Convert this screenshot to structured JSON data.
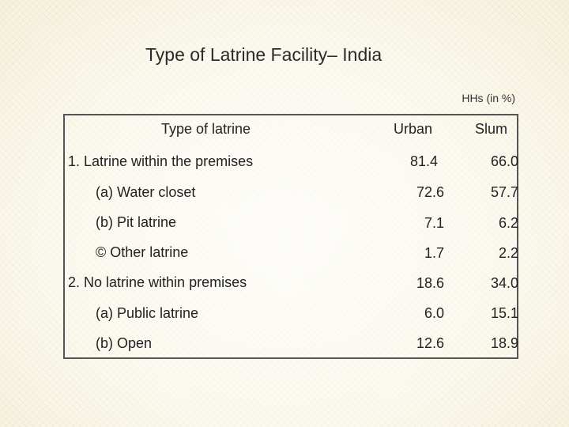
{
  "slide": {
    "title": "Type of Latrine Facility– India",
    "unit_note": "HHs (in %)"
  },
  "table": {
    "headers": {
      "type": "Type of latrine",
      "urban": "Urban",
      "slum": "Slum"
    },
    "rows": [
      {
        "label": "1. Latrine within the premises",
        "urban": "81.4",
        "slum": "66.0"
      },
      {
        "label": "(a) Water closet",
        "urban": "72.6",
        "slum": "57.7"
      },
      {
        "label": "(b) Pit latrine",
        "urban": "7.1",
        "slum": "6.2"
      },
      {
        "label": "© Other latrine",
        "urban": "1.7",
        "slum": "2.2"
      },
      {
        "label": "2. No latrine within premises",
        "urban": "18.6",
        "slum": "34.0"
      },
      {
        "label": "(a) Public latrine",
        "urban": "6.0",
        "slum": "15.1"
      },
      {
        "label": "(b) Open",
        "urban": "12.6",
        "slum": "18.9"
      }
    ]
  }
}
